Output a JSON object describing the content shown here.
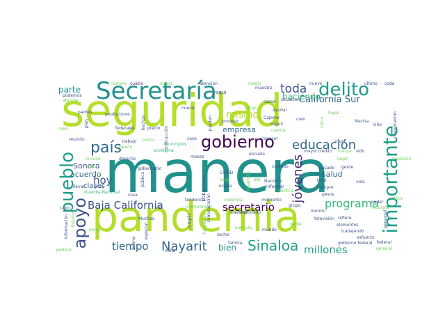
{
  "palette": {
    "lime": "#b5de2b",
    "teal": "#21918c",
    "blue": "#31688e",
    "navy": "#3b528b",
    "purple": "#440154",
    "green": "#35b779",
    "light_green": "#6ece58",
    "yellow": "#fde725",
    "mid_teal": "#26828e",
    "dark_teal": "#1f9e89",
    "indigo": "#482878"
  },
  "words": [
    "seguridad",
    "manera",
    "pandemia",
    "Secretaría",
    "delito",
    "gobierno",
    "educación",
    "país",
    "pueblo",
    "importante",
    "apoyo",
    "Sinaloa",
    "Nayarit",
    "Baja California",
    "tiempo",
    "jóvenes",
    "programa",
    "secretario",
    "millones",
    "hoy",
    "toda",
    "mismo",
    "parte",
    "California Sur",
    "haciendo",
    "acuerdo",
    "bien",
    "Sonora",
    "salud",
    "clases",
    "empresa",
    "número",
    "cuatro",
    "dinero",
    "atención",
    "medio",
    "maestra",
    "nueve",
    "último",
    "cada",
    "podemos",
    "atender",
    "yaqui",
    "casos",
    "situación",
    "padres",
    "productores",
    "federales",
    "nuevo",
    "ayudar",
    "Cajeme",
    "creo",
    "llegar",
    "coordinación",
    "robo",
    "plan",
    "precio",
    "cargo",
    "proceso",
    "seguir",
    "cuenta",
    "cinco",
    "niño",
    "Marina",
    "reunión",
    "trabajo",
    "construcción",
    "casa",
    "conocer",
    "escuela",
    "Guardia Nacional",
    "agosto",
    "cierto",
    "municipios",
    "problema",
    "meses",
    "mayor",
    "crédito",
    "fuerza",
    "sido",
    "derecho",
    "incluso",
    "gobernador",
    "pasado",
    "gente",
    "llevar",
    "gran",
    "pública",
    "COVID",
    "baja",
    "Nacional",
    "informar",
    "siempre",
    "pesos",
    "total",
    "vida",
    "cabo",
    "información",
    "Estados",
    "tendencia",
    "violencia",
    "momento",
    "grupo",
    "menos",
    "recursos",
    "compromiso",
    "vez",
    "cumplir",
    "hospitales",
    "televisión",
    "Muchas",
    "refiere",
    "elementos",
    "mejor",
    "especial",
    "ejemplo",
    "nadie",
    "trabajando",
    "esfuerzo",
    "buena",
    "sector",
    "mundo",
    "gobierno federal",
    "general",
    "público",
    "familia",
    "maestro",
    "resultado",
    "comunicación",
    "ocupa",
    "poder",
    "personal",
    "federal",
    "solo",
    "desarrollo",
    "dar",
    "cuidado",
    "nivel",
    "política",
    "cosa",
    "trabajadores",
    "caso",
    "meta",
    "inversión",
    "hechos",
    "pueden",
    "lugar",
    "niños"
  ]
}
